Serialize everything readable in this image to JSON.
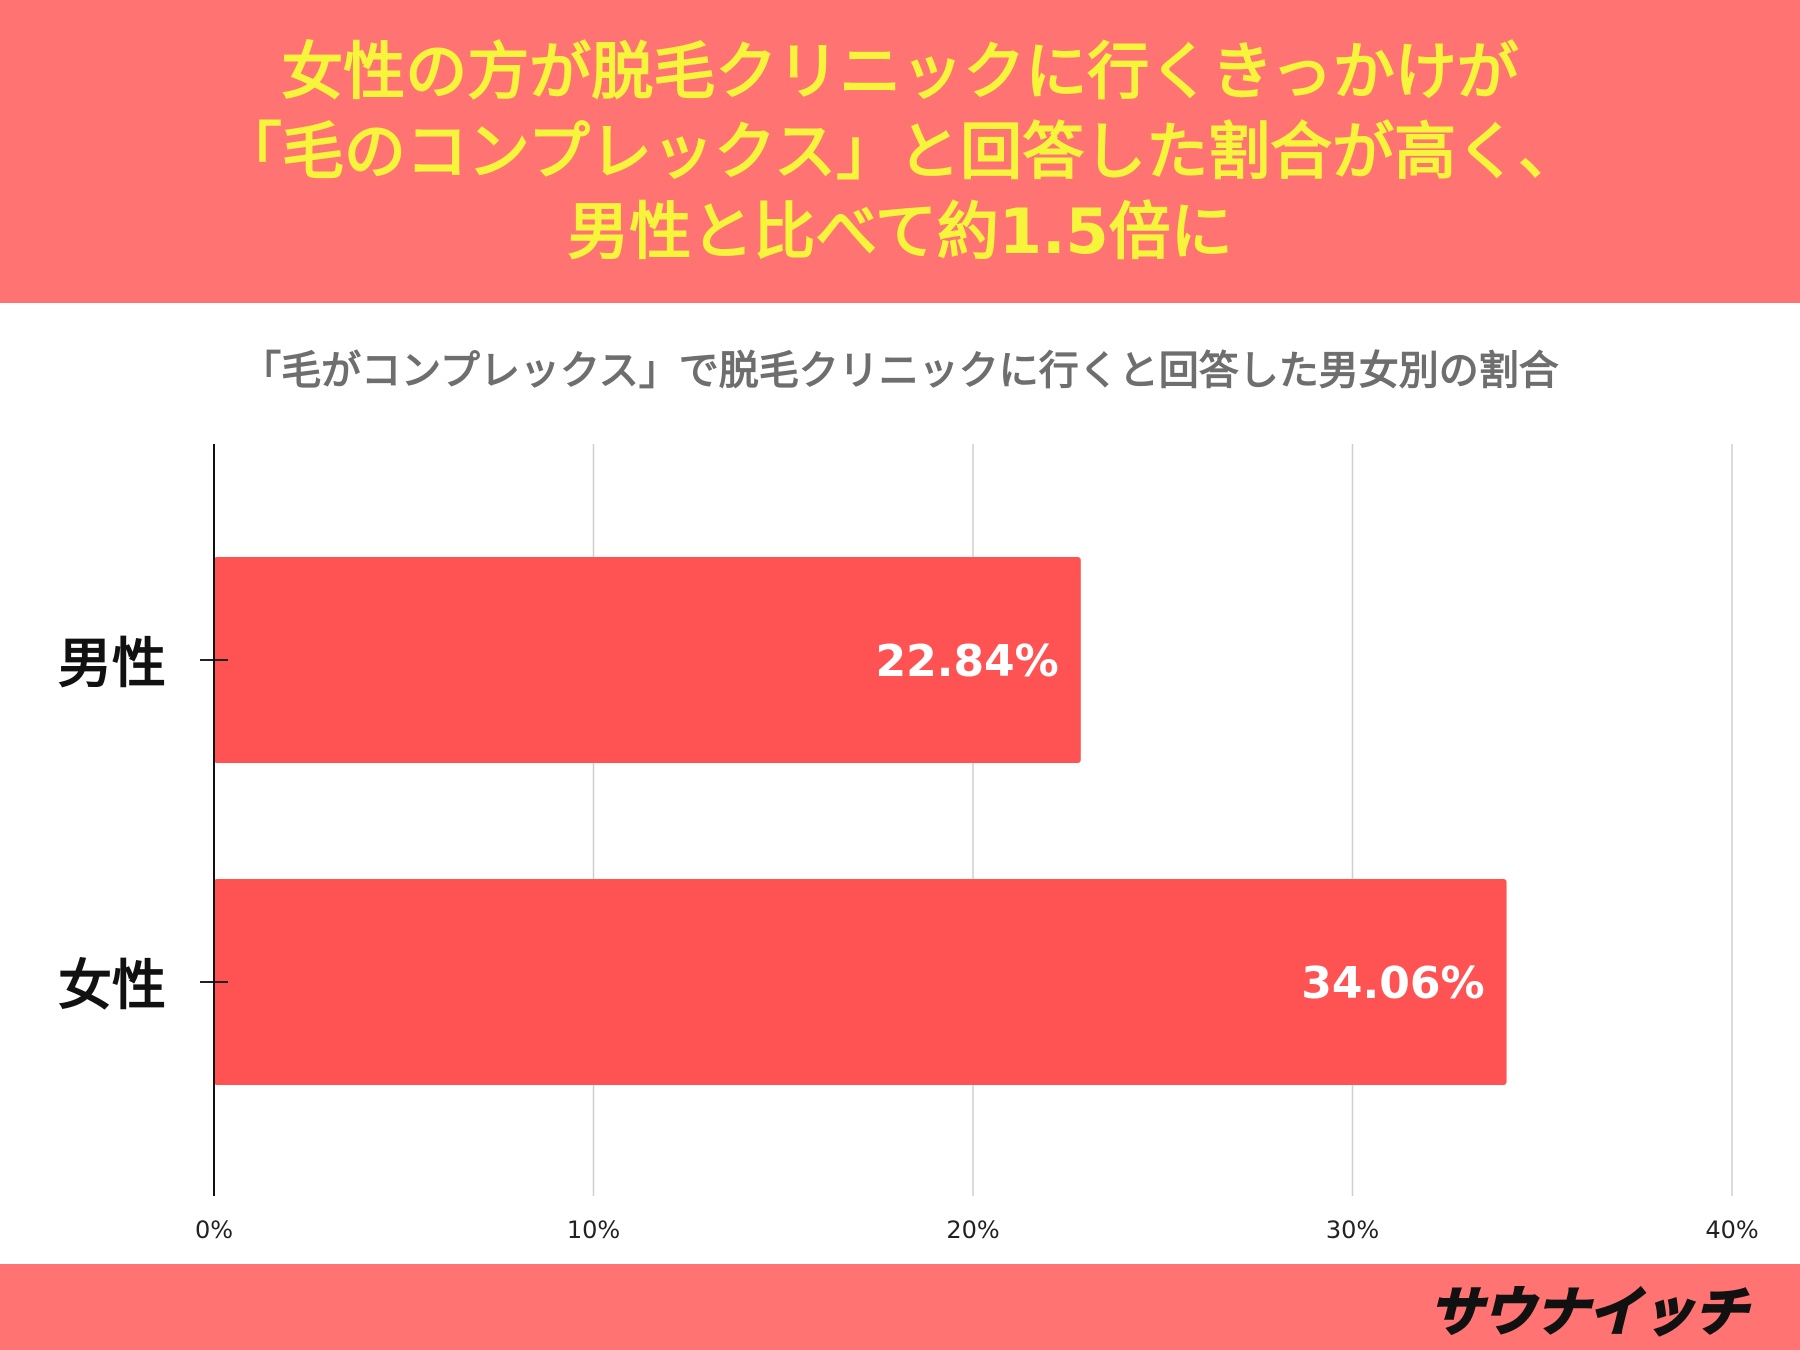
{
  "header": {
    "lines": [
      "女性の方が脱毛クリニックに行くきっかけが",
      "「毛のコンプレックス」と回答した割合が高く、",
      "男性と比べて約1.5倍に"
    ]
  },
  "chart_data": {
    "type": "bar",
    "orientation": "horizontal",
    "title": "「毛がコンプレックス」で脱毛クリニックに行くと回答した男女別の割合",
    "categories": [
      "男性",
      "女性"
    ],
    "values": [
      22.84,
      34.06
    ],
    "value_labels": [
      "22.84%",
      "34.06%"
    ],
    "xlim": [
      0,
      40
    ],
    "x_ticks": [
      0,
      10,
      20,
      30,
      40
    ],
    "x_tick_labels": [
      "0%",
      "10%",
      "20%",
      "30%",
      "40%"
    ],
    "grid": true,
    "bar_color": "#ff5252"
  },
  "footer": {
    "logo": "サウナイッチ"
  }
}
